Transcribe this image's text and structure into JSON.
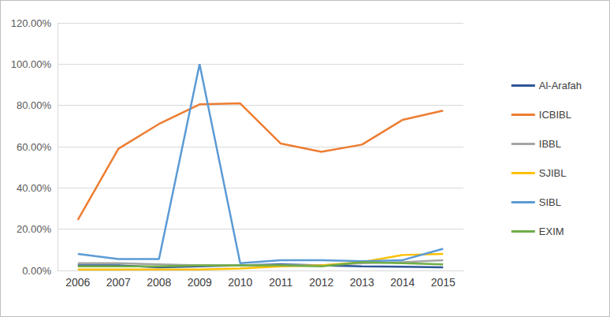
{
  "chart_data": {
    "type": "line",
    "categories": [
      "2006",
      "2007",
      "2008",
      "2009",
      "2010",
      "2011",
      "2012",
      "2013",
      "2014",
      "2015"
    ],
    "series": [
      {
        "name": "Al-Arafah",
        "color": "#2f5597",
        "values": [
          2.5,
          2.5,
          1.5,
          2,
          2.5,
          3,
          2.5,
          2,
          1.8,
          1.5
        ]
      },
      {
        "name": "ICBIBL",
        "color": "#ed7d31",
        "values": [
          24.5,
          59,
          71,
          80.5,
          81,
          61.5,
          57.5,
          61,
          73,
          77.5
        ]
      },
      {
        "name": "IBBL",
        "color": "#a5a5a5",
        "values": [
          3.5,
          3.5,
          3,
          2.5,
          2.5,
          2.5,
          2.5,
          3.5,
          4,
          5
        ]
      },
      {
        "name": "SJIBL",
        "color": "#ffc000",
        "values": [
          0.5,
          0.5,
          0.5,
          0.5,
          1,
          2,
          2.5,
          4,
          7.5,
          8
        ]
      },
      {
        "name": "SIBL",
        "color": "#5b9bd5",
        "values": [
          8,
          5.5,
          5.5,
          100,
          3.5,
          5,
          5,
          4.5,
          5,
          10.5
        ]
      },
      {
        "name": "EXIM",
        "color": "#70ad47",
        "values": [
          2,
          2,
          2,
          2.5,
          2.5,
          2.5,
          2,
          4,
          3.5,
          3
        ]
      }
    ],
    "ylim": [
      0,
      120
    ],
    "yticks": [
      {
        "value": 0,
        "label": "0.00%"
      },
      {
        "value": 20,
        "label": "20.00%"
      },
      {
        "value": 40,
        "label": "40.00%"
      },
      {
        "value": 60,
        "label": "60.00%"
      },
      {
        "value": 80,
        "label": "80.00%"
      },
      {
        "value": 100,
        "label": "100.00%"
      },
      {
        "value": 120,
        "label": "120.00%"
      }
    ],
    "grid": true,
    "legend": "right",
    "marker": "none",
    "line_style": "solid"
  }
}
